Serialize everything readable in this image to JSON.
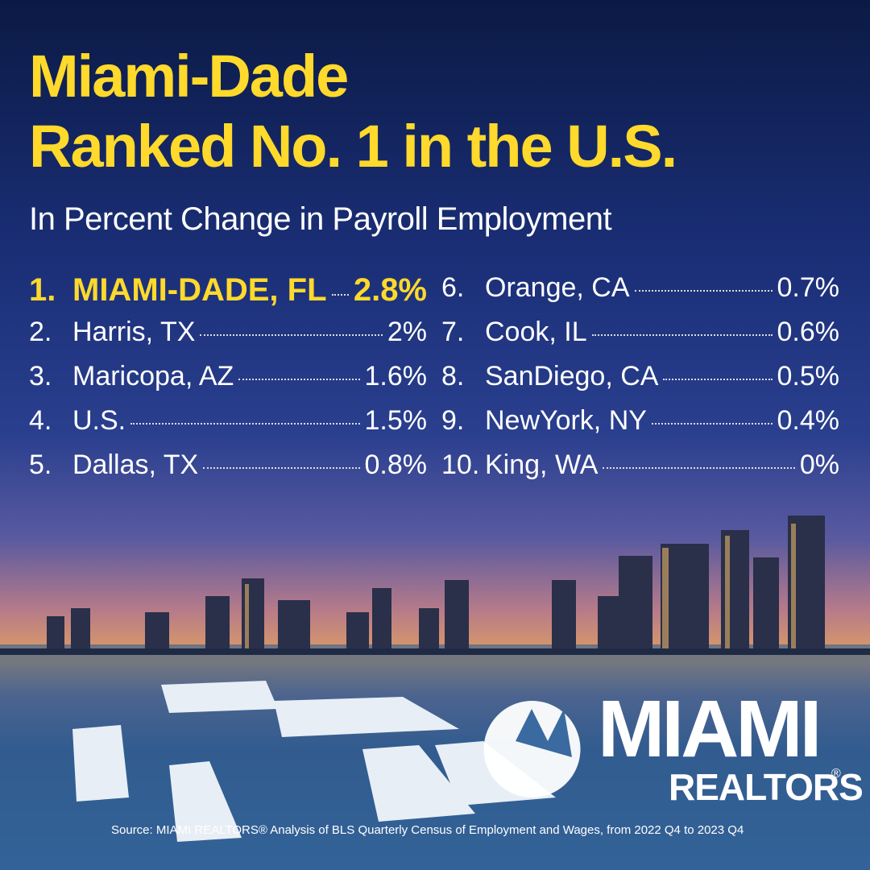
{
  "header": {
    "title_lines": [
      "Miami-Dade",
      "Ranked No. 1 in the U.S."
    ],
    "subtitle": "In Percent Change in Payroll Employment"
  },
  "rankings": [
    {
      "rank": "1.",
      "name": "MIAMI-DADE, FL",
      "value": "2.8%"
    },
    {
      "rank": "2.",
      "name": "Harris, TX",
      "value": "2%"
    },
    {
      "rank": "3.",
      "name": "Maricopa, AZ",
      "value": "1.6%"
    },
    {
      "rank": "4.",
      "name": "U.S.",
      "value": "1.5%"
    },
    {
      "rank": "5.",
      "name": "Dallas, TX",
      "value": "0.8%"
    },
    {
      "rank": "6.",
      "name": "Orange, CA",
      "value": "0.7%"
    },
    {
      "rank": "7.",
      "name": "Cook, IL",
      "value": "0.6%"
    },
    {
      "rank": "8.",
      "name": "SanDiego, CA",
      "value": "0.5%"
    },
    {
      "rank": "9.",
      "name": "NewYork, NY",
      "value": "0.4%"
    },
    {
      "rank": "10.",
      "name": "King, WA",
      "value": "0%"
    }
  ],
  "logo": {
    "name": "MIAMI",
    "subname": "REALTORS",
    "mark": "®"
  },
  "source": "Source: MIAMI REALTORS® Analysis of BLS Quarterly Census of Employment and Wages, from 2022 Q4 to 2023 Q4"
}
